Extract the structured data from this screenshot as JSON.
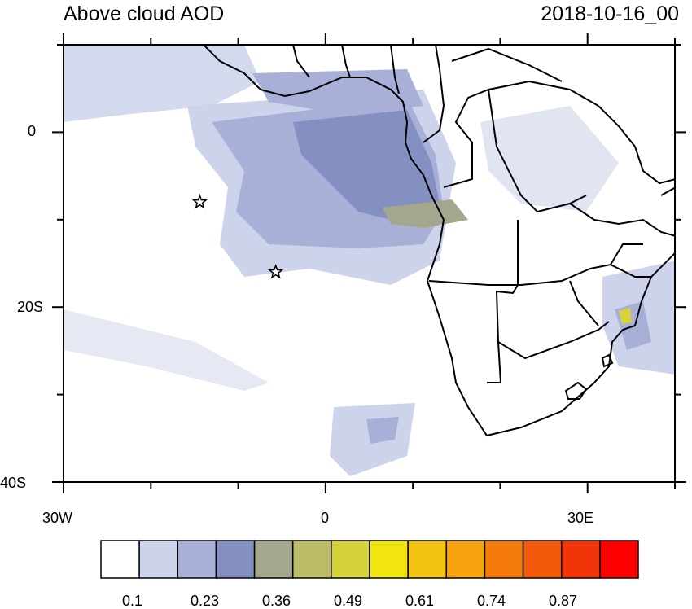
{
  "header": {
    "title": "Above cloud AOD",
    "timestamp": "2018-10-16_00"
  },
  "axes": {
    "x_ticks": [
      {
        "label": "30W",
        "lon": -30
      },
      {
        "label": "0",
        "lon": 0
      },
      {
        "label": "30E",
        "lon": 30
      }
    ],
    "y_ticks": [
      {
        "label": "0",
        "lat": 0
      },
      {
        "label": "20S",
        "lat": -20
      },
      {
        "label": "40S",
        "lat": -40
      }
    ],
    "lon_range": [
      -30,
      40
    ],
    "lat_range": [
      -40,
      10
    ]
  },
  "colorbar": {
    "colors": [
      "#ffffff",
      "#cdd3ea",
      "#a9b0d8",
      "#8590c2",
      "#a3a78e",
      "#bcbb66",
      "#d6d33a",
      "#f0e50c",
      "#f2c312",
      "#f5a20e",
      "#f47a0c",
      "#f25a0a",
      "#f23508",
      "#ff0000"
    ],
    "labels": [
      "0.1",
      "0.23",
      "0.36",
      "0.49",
      "0.61",
      "0.74",
      "0.87"
    ]
  },
  "markers": [
    {
      "name": "star",
      "lon": -14.4,
      "lat": -8.0
    },
    {
      "name": "star",
      "lon": -5.7,
      "lat": -16.0
    }
  ]
}
